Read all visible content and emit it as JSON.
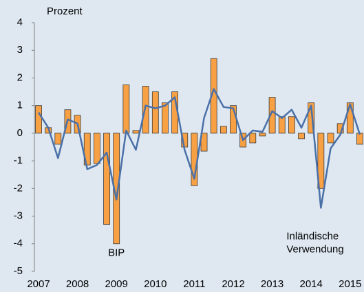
{
  "chart_data": {
    "type": "bar_line",
    "y_label": "Prozent",
    "categories": [
      "2007",
      null,
      null,
      null,
      "2008",
      null,
      null,
      null,
      "2009",
      null,
      null,
      null,
      "2010",
      null,
      null,
      null,
      "2011",
      null,
      null,
      null,
      "2012",
      null,
      null,
      null,
      "2013",
      null,
      null,
      null,
      "2014",
      null,
      null,
      null,
      "2015",
      null
    ],
    "series": [
      {
        "name": "BIP",
        "kind": "bar",
        "color": "#f7a044",
        "values": [
          1.0,
          0.2,
          -0.4,
          0.85,
          0.65,
          -1.15,
          -1.1,
          -3.3,
          -4.0,
          1.75,
          0.1,
          1.7,
          1.5,
          1.1,
          1.5,
          -0.5,
          -1.9,
          -0.65,
          2.7,
          0.25,
          1.0,
          -0.5,
          -0.35,
          -0.1,
          1.3,
          0.6,
          0.6,
          -0.2,
          1.1,
          -2.0,
          -0.35,
          0.35,
          1.1,
          -0.4
        ]
      },
      {
        "name": [
          "Inländische",
          "Verwendung"
        ],
        "kind": "line",
        "color": "#4a70a8",
        "values": [
          0.75,
          0.2,
          -0.9,
          0.5,
          0.35,
          -1.3,
          -1.15,
          -0.7,
          -2.4,
          0.1,
          -0.6,
          1.0,
          0.9,
          1.0,
          1.3,
          -0.6,
          -1.65,
          0.55,
          1.6,
          0.95,
          0.9,
          -0.25,
          0.1,
          0.05,
          0.8,
          0.55,
          0.85,
          0.2,
          1.0,
          -2.7,
          -0.55,
          -0.05,
          1.05,
          -0.05
        ]
      }
    ],
    "ylim": [
      -5,
      4
    ],
    "yticks": [
      -5,
      -4,
      -3,
      -2,
      -1,
      0,
      1,
      2,
      3,
      4
    ]
  }
}
